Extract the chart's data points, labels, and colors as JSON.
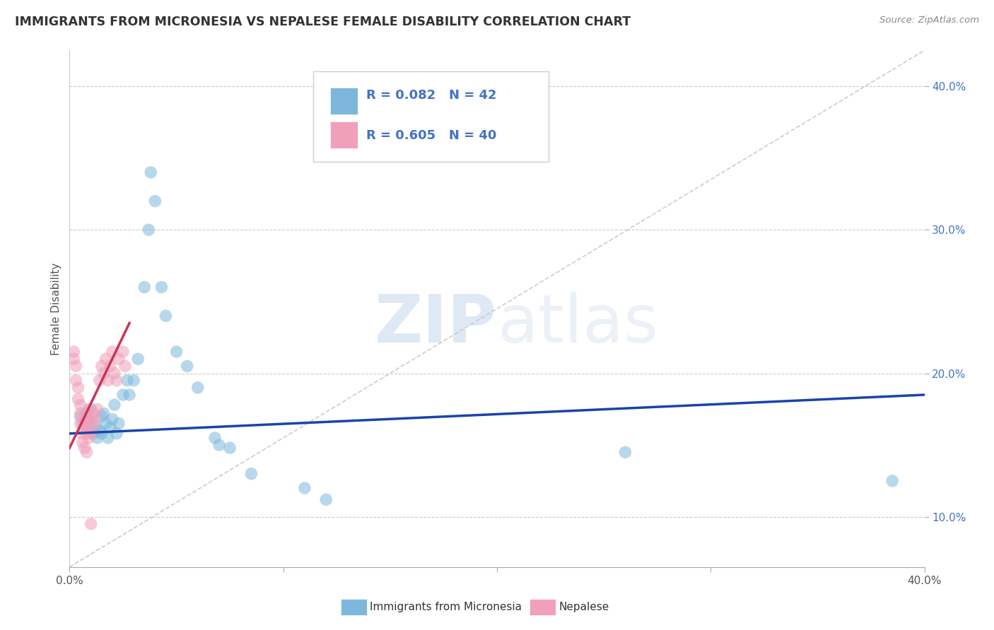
{
  "title": "IMMIGRANTS FROM MICRONESIA VS NEPALESE FEMALE DISABILITY CORRELATION CHART",
  "source": "Source: ZipAtlas.com",
  "ylabel": "Female Disability",
  "xlim": [
    0.0,
    0.4
  ],
  "ylim": [
    0.065,
    0.425
  ],
  "legend_label1": "Immigrants from Micronesia",
  "legend_label2": "Nepalese",
  "r1": "R = 0.082",
  "n1": "N = 42",
  "r2": "R = 0.605",
  "n2": "N = 40",
  "blue_color": "#7db8dc",
  "pink_color": "#f0a0b8",
  "blue_line_color": "#1a44aa",
  "pink_line_color": "#cc3355",
  "diag_color": "#cccccc",
  "watermark_zip": "ZIP",
  "watermark_atlas": "atlas",
  "background_color": "#ffffff",
  "grid_color": "#cccccc",
  "blue_scatter": [
    [
      0.005,
      0.17
    ],
    [
      0.007,
      0.165
    ],
    [
      0.008,
      0.172
    ],
    [
      0.009,
      0.168
    ],
    [
      0.01,
      0.16
    ],
    [
      0.01,
      0.175
    ],
    [
      0.011,
      0.158
    ],
    [
      0.012,
      0.163
    ],
    [
      0.013,
      0.155
    ],
    [
      0.014,
      0.16
    ],
    [
      0.015,
      0.17
    ],
    [
      0.015,
      0.158
    ],
    [
      0.016,
      0.172
    ],
    [
      0.017,
      0.165
    ],
    [
      0.018,
      0.155
    ],
    [
      0.019,
      0.162
    ],
    [
      0.02,
      0.168
    ],
    [
      0.021,
      0.178
    ],
    [
      0.022,
      0.158
    ],
    [
      0.023,
      0.165
    ],
    [
      0.025,
      0.185
    ],
    [
      0.027,
      0.195
    ],
    [
      0.028,
      0.185
    ],
    [
      0.03,
      0.195
    ],
    [
      0.032,
      0.21
    ],
    [
      0.035,
      0.26
    ],
    [
      0.037,
      0.3
    ],
    [
      0.038,
      0.34
    ],
    [
      0.04,
      0.32
    ],
    [
      0.043,
      0.26
    ],
    [
      0.045,
      0.24
    ],
    [
      0.05,
      0.215
    ],
    [
      0.055,
      0.205
    ],
    [
      0.06,
      0.19
    ],
    [
      0.068,
      0.155
    ],
    [
      0.07,
      0.15
    ],
    [
      0.075,
      0.148
    ],
    [
      0.085,
      0.13
    ],
    [
      0.11,
      0.12
    ],
    [
      0.12,
      0.112
    ],
    [
      0.26,
      0.145
    ],
    [
      0.385,
      0.125
    ]
  ],
  "pink_scatter": [
    [
      0.002,
      0.215
    ],
    [
      0.002,
      0.21
    ],
    [
      0.003,
      0.205
    ],
    [
      0.003,
      0.195
    ],
    [
      0.004,
      0.19
    ],
    [
      0.004,
      0.182
    ],
    [
      0.005,
      0.178
    ],
    [
      0.005,
      0.172
    ],
    [
      0.005,
      0.165
    ],
    [
      0.006,
      0.165
    ],
    [
      0.006,
      0.158
    ],
    [
      0.006,
      0.152
    ],
    [
      0.007,
      0.17
    ],
    [
      0.007,
      0.162
    ],
    [
      0.007,
      0.148
    ],
    [
      0.008,
      0.168
    ],
    [
      0.008,
      0.158
    ],
    [
      0.008,
      0.145
    ],
    [
      0.009,
      0.175
    ],
    [
      0.009,
      0.162
    ],
    [
      0.009,
      0.155
    ],
    [
      0.01,
      0.168
    ],
    [
      0.01,
      0.158
    ],
    [
      0.011,
      0.172
    ],
    [
      0.011,
      0.162
    ],
    [
      0.012,
      0.168
    ],
    [
      0.013,
      0.175
    ],
    [
      0.014,
      0.195
    ],
    [
      0.015,
      0.205
    ],
    [
      0.016,
      0.2
    ],
    [
      0.017,
      0.21
    ],
    [
      0.018,
      0.195
    ],
    [
      0.019,
      0.205
    ],
    [
      0.02,
      0.215
    ],
    [
      0.021,
      0.2
    ],
    [
      0.022,
      0.195
    ],
    [
      0.023,
      0.21
    ],
    [
      0.025,
      0.215
    ],
    [
      0.026,
      0.205
    ],
    [
      0.01,
      0.095
    ]
  ],
  "blue_line_x": [
    0.0,
    0.4
  ],
  "blue_line_y": [
    0.158,
    0.185
  ],
  "pink_line_x": [
    0.0,
    0.028
  ],
  "pink_line_y": [
    0.148,
    0.235
  ]
}
